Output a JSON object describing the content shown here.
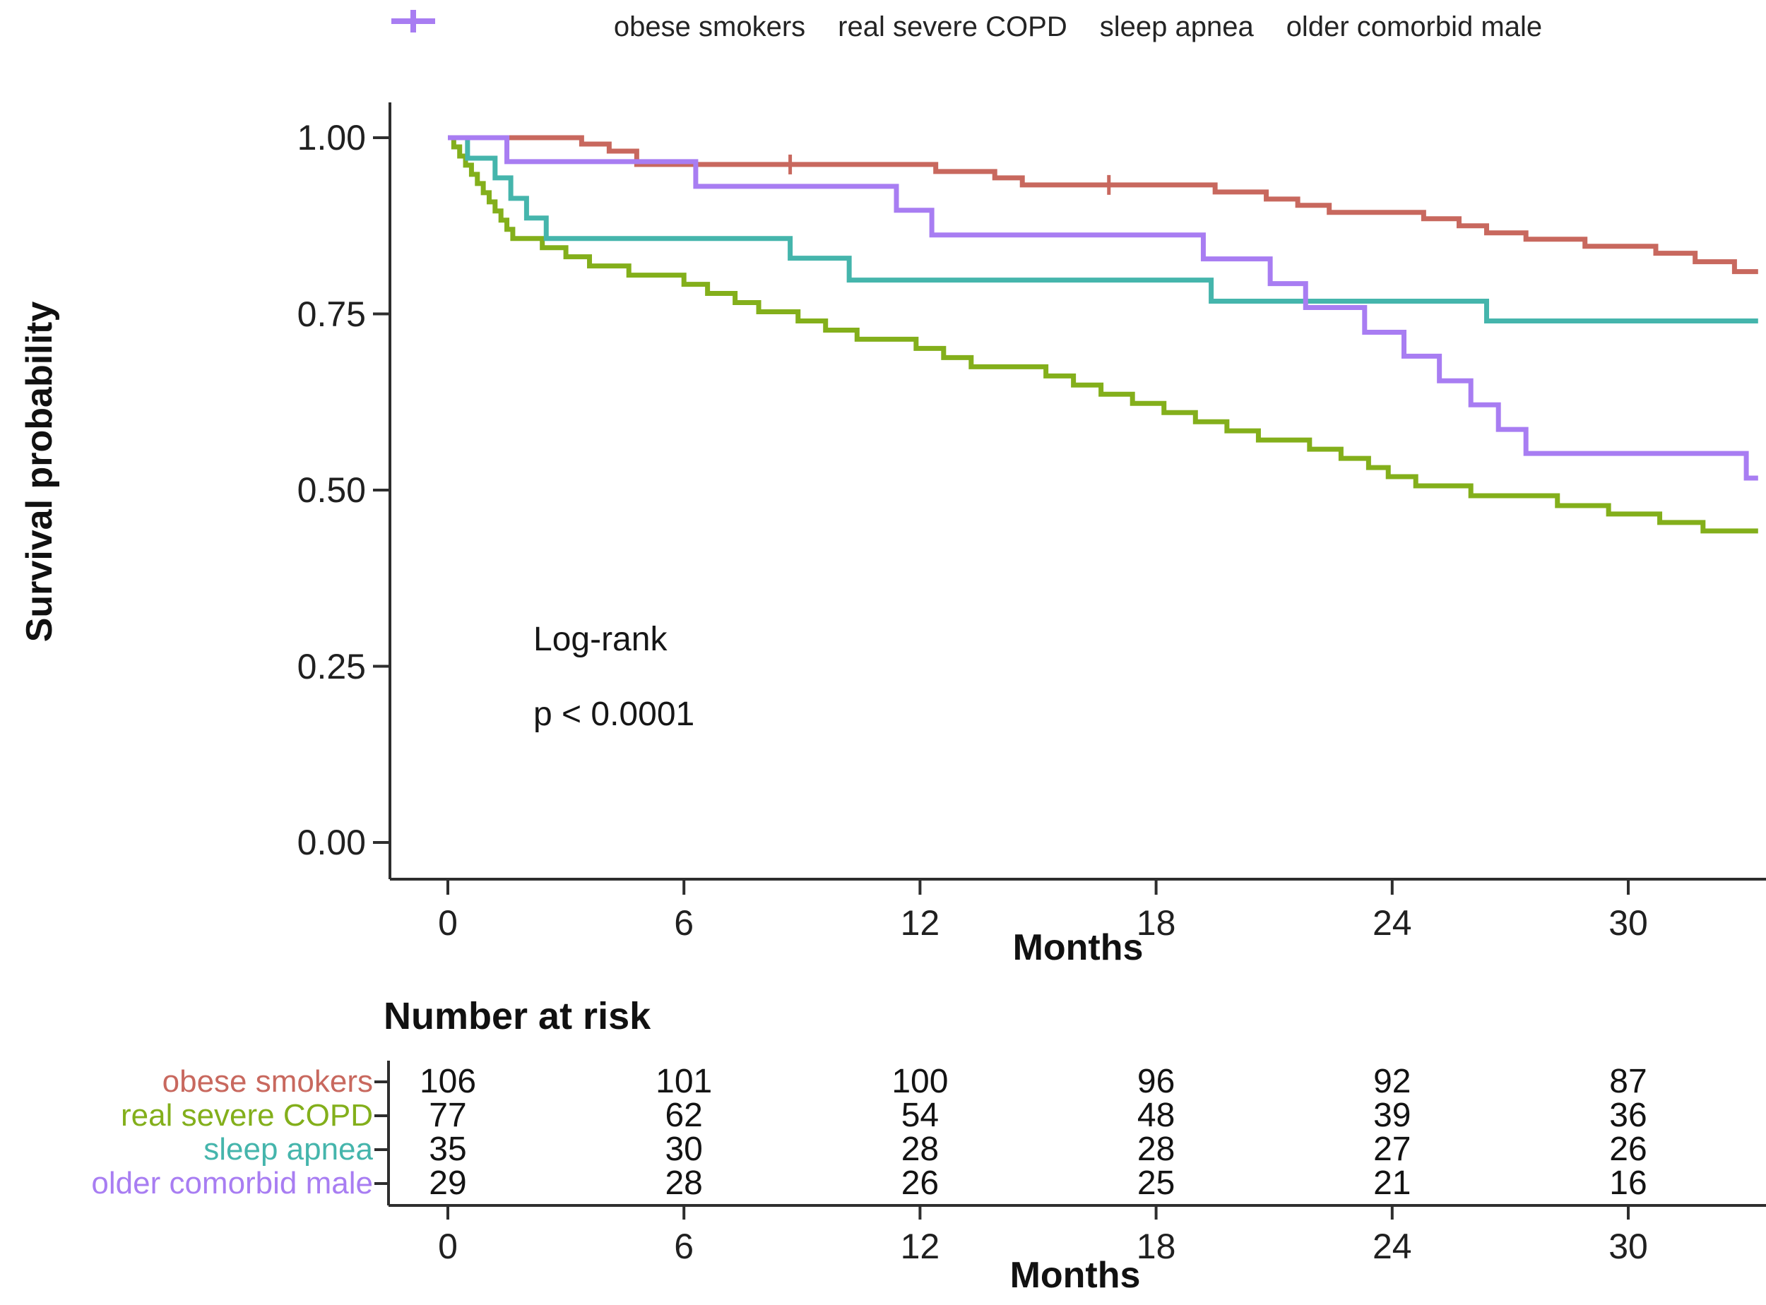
{
  "legend": {
    "items": [
      {
        "label": "obese smokers",
        "color": "#C8685E"
      },
      {
        "label": "real severe COPD",
        "color": "#83AF1B"
      },
      {
        "label": "sleep apnea",
        "color": "#45B5AC"
      },
      {
        "label": "older comorbid male",
        "color": "#A87DF2"
      }
    ]
  },
  "chart_data": {
    "type": "line",
    "subtype": "kaplan-meier-step",
    "title": "",
    "xlabel": "Months",
    "ylabel": "Survival probability",
    "xlim": [
      -1.5,
      33.5
    ],
    "ylim": [
      -0.05,
      1.05
    ],
    "grid": "off",
    "legend_position": "top",
    "xticks": [
      0,
      6,
      12,
      18,
      24,
      30
    ],
    "yticks": [
      {
        "label": "1.00",
        "value": 1.0
      },
      {
        "label": "0.75",
        "value": 0.75
      },
      {
        "label": "0.50",
        "value": 0.5
      },
      {
        "label": "0.25",
        "value": 0.25
      },
      {
        "label": "0.00",
        "value": 0.0
      }
    ],
    "annotation": {
      "line1": "Log-rank",
      "line2": "p < 0.0001"
    },
    "series": [
      {
        "name": "real severe COPD",
        "color": "#83AF1B",
        "start": [
          0,
          1.0
        ],
        "end_month": 33.3,
        "steps": [
          [
            0.15,
            0.987
          ],
          [
            0.3,
            0.974
          ],
          [
            0.45,
            0.961
          ],
          [
            0.6,
            0.948
          ],
          [
            0.75,
            0.935
          ],
          [
            0.9,
            0.922
          ],
          [
            1.05,
            0.909
          ],
          [
            1.2,
            0.896
          ],
          [
            1.35,
            0.883
          ],
          [
            1.5,
            0.87
          ],
          [
            1.65,
            0.857
          ],
          [
            2.4,
            0.844
          ],
          [
            3.0,
            0.831
          ],
          [
            3.6,
            0.818
          ],
          [
            4.6,
            0.805
          ],
          [
            6.0,
            0.792
          ],
          [
            6.6,
            0.779
          ],
          [
            7.3,
            0.766
          ],
          [
            7.9,
            0.753
          ],
          [
            8.9,
            0.74
          ],
          [
            9.6,
            0.727
          ],
          [
            10.4,
            0.714
          ],
          [
            11.9,
            0.701
          ],
          [
            12.6,
            0.688
          ],
          [
            13.3,
            0.675
          ],
          [
            15.2,
            0.662
          ],
          [
            15.9,
            0.649
          ],
          [
            16.6,
            0.636
          ],
          [
            17.4,
            0.623
          ],
          [
            18.2,
            0.61
          ],
          [
            19.0,
            0.597
          ],
          [
            19.8,
            0.584
          ],
          [
            20.6,
            0.571
          ],
          [
            21.9,
            0.558
          ],
          [
            22.7,
            0.545
          ],
          [
            23.4,
            0.532
          ],
          [
            23.9,
            0.519
          ],
          [
            24.6,
            0.506
          ],
          [
            26.0,
            0.492
          ],
          [
            28.2,
            0.478
          ],
          [
            29.5,
            0.466
          ],
          [
            30.8,
            0.454
          ],
          [
            31.9,
            0.442
          ]
        ],
        "censor_marks": []
      },
      {
        "name": "sleep apnea",
        "color": "#45B5AC",
        "start": [
          0,
          1.0
        ],
        "end_month": 33.3,
        "steps": [
          [
            0.5,
            0.971
          ],
          [
            1.2,
            0.943
          ],
          [
            1.6,
            0.914
          ],
          [
            2.0,
            0.886
          ],
          [
            2.5,
            0.857
          ],
          [
            8.7,
            0.829
          ],
          [
            10.2,
            0.798
          ],
          [
            19.4,
            0.768
          ],
          [
            26.4,
            0.74
          ]
        ],
        "censor_marks": []
      },
      {
        "name": "obese smokers",
        "color": "#C8685E",
        "start": [
          0,
          1.0
        ],
        "end_month": 33.3,
        "steps": [
          [
            3.4,
            0.991
          ],
          [
            4.1,
            0.981
          ],
          [
            4.8,
            0.962
          ],
          [
            12.4,
            0.952
          ],
          [
            13.9,
            0.943
          ],
          [
            14.6,
            0.933
          ],
          [
            19.5,
            0.923
          ],
          [
            20.8,
            0.913
          ],
          [
            21.6,
            0.904
          ],
          [
            22.4,
            0.894
          ],
          [
            24.8,
            0.885
          ],
          [
            25.7,
            0.875
          ],
          [
            26.4,
            0.865
          ],
          [
            27.4,
            0.856
          ],
          [
            28.9,
            0.846
          ],
          [
            30.7,
            0.836
          ],
          [
            31.7,
            0.824
          ],
          [
            32.7,
            0.81
          ]
        ],
        "censor_marks": [
          [
            8.7,
            0.962
          ],
          [
            16.8,
            0.933
          ]
        ]
      },
      {
        "name": "older comorbid male",
        "color": "#A87DF2",
        "start": [
          0,
          1.0
        ],
        "end_month": 33.3,
        "steps": [
          [
            1.5,
            0.966
          ],
          [
            6.3,
            0.931
          ],
          [
            11.4,
            0.897
          ],
          [
            12.3,
            0.862
          ],
          [
            19.2,
            0.828
          ],
          [
            20.9,
            0.793
          ],
          [
            21.8,
            0.759
          ],
          [
            23.3,
            0.724
          ],
          [
            24.3,
            0.69
          ],
          [
            25.2,
            0.655
          ],
          [
            26.0,
            0.621
          ],
          [
            26.7,
            0.586
          ],
          [
            27.4,
            0.552
          ],
          [
            33.0,
            0.517
          ]
        ],
        "censor_marks": []
      }
    ]
  },
  "risk_table": {
    "title": "Number at risk",
    "xlabel": "Months",
    "columns": [
      0,
      6,
      12,
      18,
      24,
      30
    ],
    "rows": [
      {
        "label": "obese smokers",
        "color": "#C8685E",
        "values": [
          106,
          101,
          100,
          96,
          92,
          87
        ]
      },
      {
        "label": "real severe COPD",
        "color": "#83AF1B",
        "values": [
          77,
          62,
          54,
          48,
          39,
          36
        ]
      },
      {
        "label": "sleep apnea",
        "color": "#45B5AC",
        "values": [
          35,
          30,
          28,
          28,
          27,
          26
        ]
      },
      {
        "label": "older comorbid male",
        "color": "#A87DF2",
        "values": [
          29,
          28,
          26,
          25,
          21,
          16
        ]
      }
    ]
  }
}
